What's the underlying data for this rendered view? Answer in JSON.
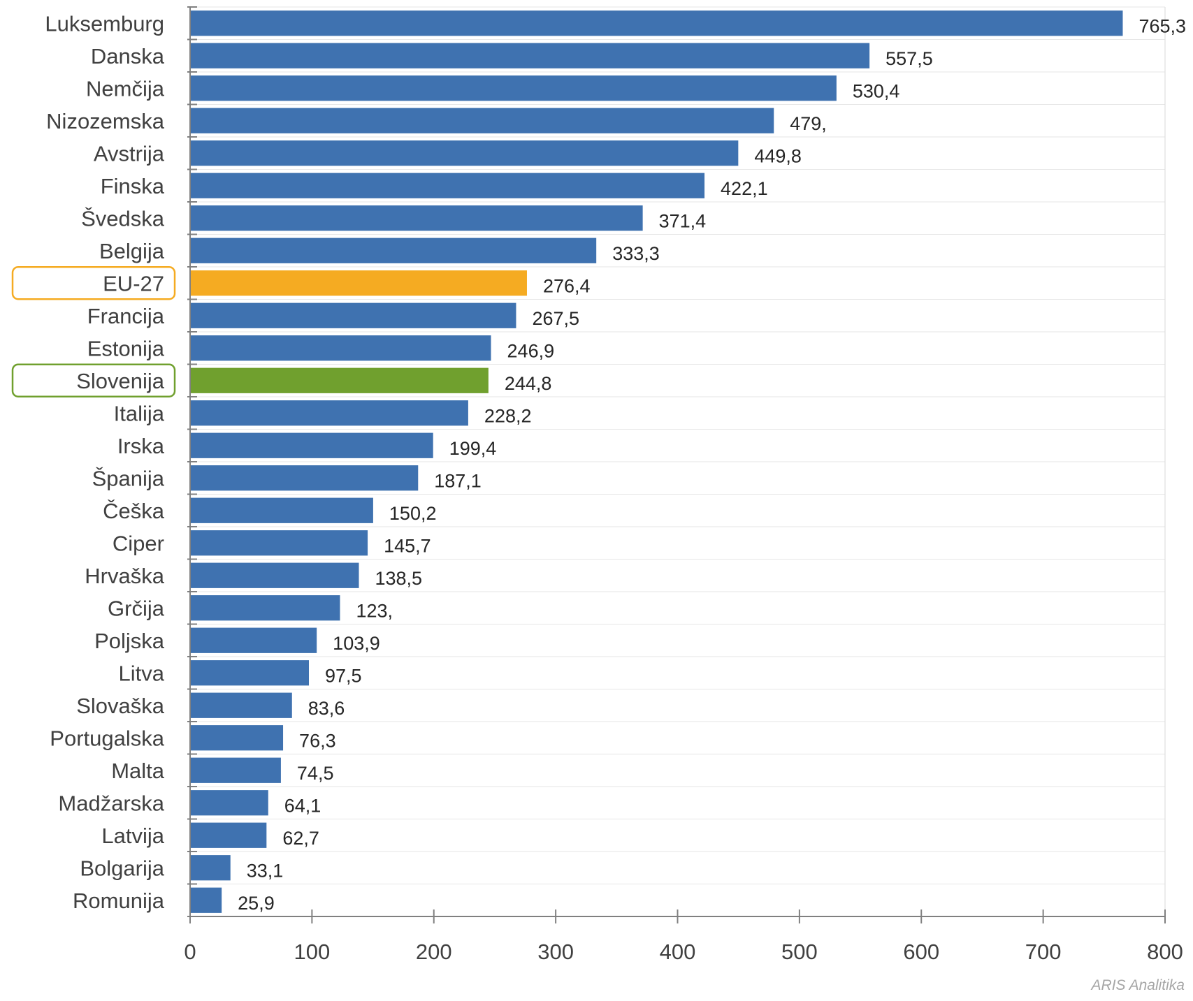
{
  "chart_data": {
    "type": "bar",
    "orientation": "horizontal",
    "categories": [
      "Luksemburg",
      "Danska",
      "Nemčija",
      "Nizozemska",
      "Avstrija",
      "Finska",
      "Švedska",
      "Belgija",
      "EU-27",
      "Francija",
      "Estonija",
      "Slovenija",
      "Italija",
      "Irska",
      "Španija",
      "Češka",
      "Ciper",
      "Hrvaška",
      "Grčija",
      "Poljska",
      "Litva",
      "Slovaška",
      "Portugalska",
      "Malta",
      "Madžarska",
      "Latvija",
      "Bolgarija",
      "Romunija"
    ],
    "values": [
      765.3,
      557.5,
      530.4,
      479.0,
      449.8,
      422.1,
      371.4,
      333.3,
      276.4,
      267.5,
      246.9,
      244.8,
      228.2,
      199.4,
      187.1,
      150.2,
      145.7,
      138.5,
      123.0,
      103.9,
      97.5,
      83.6,
      76.3,
      74.5,
      64.1,
      62.7,
      33.1,
      25.9
    ],
    "value_labels": [
      "765,3",
      "557,5",
      "530,4",
      "479,",
      "449,8",
      "422,1",
      "371,4",
      "333,3",
      "276,4",
      "267,5",
      "246,9",
      "244,8",
      "228,2",
      "199,4",
      "187,1",
      "150,2",
      "145,7",
      "138,5",
      "123,",
      "103,9",
      "97,5",
      "83,6",
      "76,3",
      "74,5",
      "64,1",
      "62,7",
      "33,1",
      "25,9"
    ],
    "highlights": {
      "EU-27": "#f5ab22",
      "Slovenija": "#70a02e"
    },
    "bar_color": "#3f72b0",
    "xlim": [
      0,
      800
    ],
    "xticks": [
      "0",
      "100",
      "200",
      "300",
      "400",
      "500",
      "600",
      "700",
      "800"
    ],
    "grid": true,
    "title": "",
    "xlabel": "",
    "ylabel": ""
  },
  "watermark": "ARIS Analitika"
}
